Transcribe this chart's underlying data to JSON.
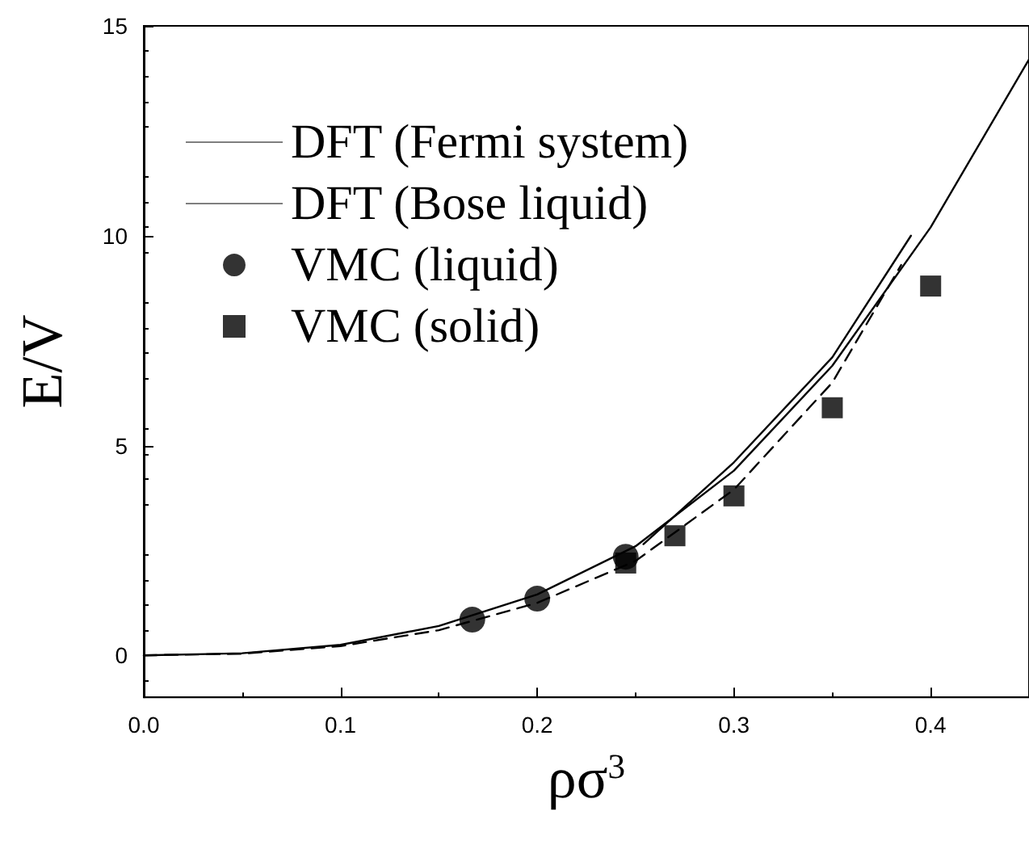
{
  "chart_data": {
    "type": "line",
    "xlabel": "ρσ$^{3}$",
    "ylabel": "E/V",
    "xlim": [
      0,
      0.45
    ],
    "ylim": [
      -1,
      15
    ],
    "xticks": [
      {
        "value": 0,
        "label": "0.0"
      },
      {
        "value": 0.1,
        "label": "0.1"
      },
      {
        "value": 0.2,
        "label": "0.2"
      },
      {
        "value": 0.3,
        "label": "0.3"
      },
      {
        "value": 0.4,
        "label": "0.4"
      }
    ],
    "yticks": [
      0,
      5,
      10,
      15
    ],
    "grid": false,
    "legend": "top left",
    "series": [
      {
        "name": "DFT (Fermi system)",
        "color": "#000000",
        "line_style": "solid",
        "marker": "none",
        "x": [
          0,
          0.05,
          0.1,
          0.15,
          0.2,
          0.25,
          0.3,
          0.35,
          0.4,
          0.45
        ],
        "values": [
          0,
          0.05,
          0.25,
          0.7,
          1.45,
          2.6,
          4.4,
          6.9,
          10.2,
          14.2
        ]
      },
      {
        "name": "DFT (Bose liquid)",
        "color": "#000000",
        "line_style": "dashed",
        "marker": "none",
        "x": [
          0,
          0.05,
          0.1,
          0.15,
          0.2,
          0.25,
          0.3,
          0.35,
          0.385
        ],
        "values": [
          0,
          0.04,
          0.22,
          0.6,
          1.25,
          2.25,
          3.95,
          6.5,
          9.3
        ]
      },
      {
        "color": "#000000",
        "line_style": "solid",
        "marker": "none",
        "x": [
          0.254,
          0.3,
          0.35,
          0.39
        ],
        "values": [
          2.65,
          4.6,
          7.1,
          10.0
        ]
      },
      {
        "name": "VMC (liquid)",
        "type": "scatter",
        "color": "#000000",
        "marker": "circle",
        "x": [
          0.167,
          0.2,
          0.245
        ],
        "values": [
          0.85,
          1.35,
          2.35
        ]
      },
      {
        "name": "VMC (solid)",
        "type": "scatter",
        "color": "#000000",
        "marker": "square",
        "x": [
          0.245,
          0.27,
          0.3,
          0.35,
          0.4
        ],
        "values": [
          2.2,
          2.85,
          3.8,
          5.9,
          8.8
        ]
      }
    ]
  }
}
